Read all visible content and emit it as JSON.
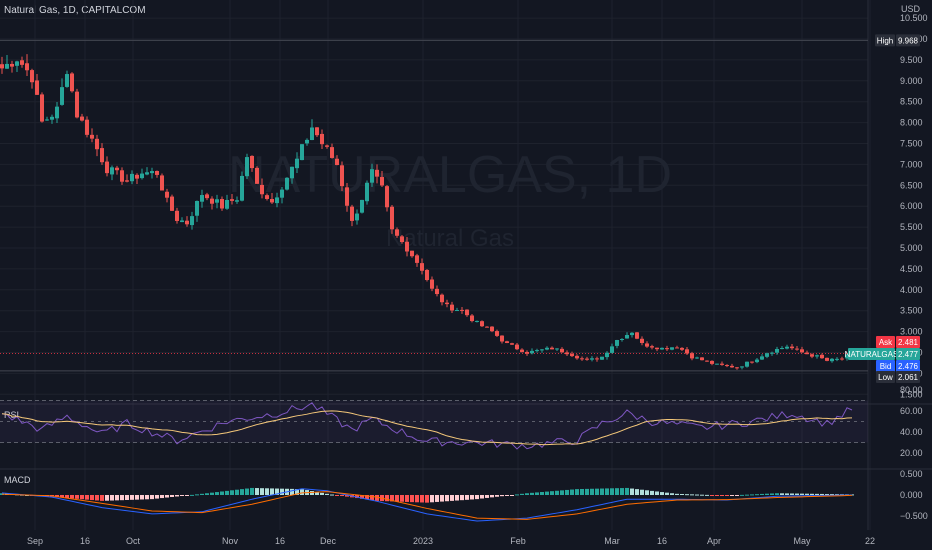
{
  "header": {
    "symbol_line": "Natural Gas, 1D, CAPITALCOM"
  },
  "watermark": {
    "main": "NATURALGAS, 1D",
    "sub": "Natural Gas"
  },
  "axis": {
    "unit": "USD",
    "price_ticks": [
      "1.500",
      "2.000",
      "2.500",
      "3.000",
      "3.500",
      "4.000",
      "4.500",
      "5.000",
      "5.500",
      "6.000",
      "6.500",
      "7.000",
      "7.500",
      "8.000",
      "8.500",
      "9.000",
      "9.500",
      "10.000",
      "10.500"
    ],
    "rsi_ticks": [
      "20.00",
      "40.00",
      "60.00",
      "80.00"
    ],
    "macd_ticks": [
      "−0.500",
      "0.000",
      "0.500"
    ],
    "time_labels": [
      "Sep",
      "16",
      "Oct",
      "Nov",
      "16",
      "Dec",
      "2023",
      "Feb",
      "Mar",
      "16",
      "Apr",
      "May",
      "22"
    ]
  },
  "markers": {
    "high": {
      "label": "High",
      "value": "9.968"
    },
    "ask": {
      "label": "Ask",
      "value": "2.481"
    },
    "symbol_tag": {
      "label": "NATURALGAS",
      "value": "2.477"
    },
    "bid": {
      "label": "Bid",
      "value": "2.476"
    },
    "low": {
      "label": "Low",
      "value": "2.061"
    }
  },
  "panels": {
    "rsi_label": "RSI",
    "macd_label": "MACD"
  },
  "colors": {
    "up": "#26a69a",
    "down": "#ef5350",
    "bg": "#131722",
    "grid": "#1e222d",
    "rsi_line": "#7e57c2",
    "rsi_ma": "#f5c87a",
    "macd_line": "#2962ff",
    "signal_line": "#ff6d00",
    "high_low_tag": "#2a2e39",
    "ask_tag": "#f23645",
    "bid_tag": "#2962ff",
    "sym_tag": "#26a69a"
  },
  "chart_data": {
    "type": "candlestick",
    "price_range": [
      1.5,
      10.5
    ],
    "anchors": {
      "close": [
        {
          "i": 0,
          "v": 9.3
        },
        {
          "i": 3,
          "v": 9.55
        },
        {
          "i": 6,
          "v": 9.1
        },
        {
          "i": 8,
          "v": 8.0
        },
        {
          "i": 11,
          "v": 8.3
        },
        {
          "i": 13,
          "v": 9.3
        },
        {
          "i": 15,
          "v": 8.2
        },
        {
          "i": 18,
          "v": 7.6
        },
        {
          "i": 21,
          "v": 6.9
        },
        {
          "i": 25,
          "v": 6.6
        },
        {
          "i": 28,
          "v": 6.8
        },
        {
          "i": 31,
          "v": 6.8
        },
        {
          "i": 33,
          "v": 6.1
        },
        {
          "i": 35,
          "v": 5.7
        },
        {
          "i": 37,
          "v": 5.6
        },
        {
          "i": 40,
          "v": 6.3
        },
        {
          "i": 44,
          "v": 6.0
        },
        {
          "i": 47,
          "v": 6.2
        },
        {
          "i": 49,
          "v": 7.2
        },
        {
          "i": 51,
          "v": 6.5
        },
        {
          "i": 54,
          "v": 6.1
        },
        {
          "i": 56,
          "v": 6.5
        },
        {
          "i": 59,
          "v": 7.1
        },
        {
          "i": 62,
          "v": 7.9
        },
        {
          "i": 64,
          "v": 7.5
        },
        {
          "i": 67,
          "v": 7.0
        },
        {
          "i": 70,
          "v": 5.6
        },
        {
          "i": 72,
          "v": 6.2
        },
        {
          "i": 74,
          "v": 6.8
        },
        {
          "i": 76,
          "v": 6.4
        },
        {
          "i": 78,
          "v": 5.4
        },
        {
          "i": 81,
          "v": 5.0
        },
        {
          "i": 84,
          "v": 4.5
        },
        {
          "i": 86,
          "v": 4.0
        },
        {
          "i": 89,
          "v": 3.6
        },
        {
          "i": 92,
          "v": 3.5
        },
        {
          "i": 95,
          "v": 3.2
        },
        {
          "i": 98,
          "v": 3.0
        },
        {
          "i": 101,
          "v": 2.7
        },
        {
          "i": 105,
          "v": 2.5
        },
        {
          "i": 110,
          "v": 2.6
        },
        {
          "i": 113,
          "v": 2.5
        },
        {
          "i": 117,
          "v": 2.3
        },
        {
          "i": 120,
          "v": 2.4
        },
        {
          "i": 123,
          "v": 2.8
        },
        {
          "i": 126,
          "v": 3.0
        },
        {
          "i": 128,
          "v": 2.7
        },
        {
          "i": 132,
          "v": 2.6
        },
        {
          "i": 135,
          "v": 2.65
        },
        {
          "i": 138,
          "v": 2.4
        },
        {
          "i": 143,
          "v": 2.2
        },
        {
          "i": 147,
          "v": 2.15
        },
        {
          "i": 150,
          "v": 2.3
        },
        {
          "i": 153,
          "v": 2.5
        },
        {
          "i": 157,
          "v": 2.65
        },
        {
          "i": 160,
          "v": 2.5
        },
        {
          "i": 163,
          "v": 2.4
        },
        {
          "i": 165,
          "v": 2.3
        },
        {
          "i": 168,
          "v": 2.35
        },
        {
          "i": 170,
          "v": 2.48
        }
      ],
      "rsi": [
        {
          "i": 0,
          "v": 58
        },
        {
          "i": 8,
          "v": 42
        },
        {
          "i": 13,
          "v": 55
        },
        {
          "i": 20,
          "v": 38
        },
        {
          "i": 25,
          "v": 48
        },
        {
          "i": 35,
          "v": 32
        },
        {
          "i": 45,
          "v": 50
        },
        {
          "i": 55,
          "v": 58
        },
        {
          "i": 62,
          "v": 66
        },
        {
          "i": 70,
          "v": 42
        },
        {
          "i": 74,
          "v": 52
        },
        {
          "i": 80,
          "v": 40
        },
        {
          "i": 85,
          "v": 31
        },
        {
          "i": 95,
          "v": 30
        },
        {
          "i": 105,
          "v": 27
        },
        {
          "i": 115,
          "v": 32
        },
        {
          "i": 120,
          "v": 48
        },
        {
          "i": 125,
          "v": 58
        },
        {
          "i": 130,
          "v": 50
        },
        {
          "i": 140,
          "v": 44
        },
        {
          "i": 150,
          "v": 50
        },
        {
          "i": 158,
          "v": 58
        },
        {
          "i": 165,
          "v": 48
        },
        {
          "i": 170,
          "v": 62
        }
      ],
      "macd": [
        {
          "i": 0,
          "v": 0.05
        },
        {
          "i": 10,
          "v": -0.05
        },
        {
          "i": 20,
          "v": -0.3
        },
        {
          "i": 30,
          "v": -0.45
        },
        {
          "i": 40,
          "v": -0.4
        },
        {
          "i": 50,
          "v": -0.1
        },
        {
          "i": 60,
          "v": 0.15
        },
        {
          "i": 65,
          "v": 0.1
        },
        {
          "i": 75,
          "v": -0.15
        },
        {
          "i": 85,
          "v": -0.45
        },
        {
          "i": 95,
          "v": -0.62
        },
        {
          "i": 105,
          "v": -0.55
        },
        {
          "i": 115,
          "v": -0.35
        },
        {
          "i": 125,
          "v": -0.1
        },
        {
          "i": 135,
          "v": -0.1
        },
        {
          "i": 145,
          "v": -0.12
        },
        {
          "i": 155,
          "v": -0.03
        },
        {
          "i": 170,
          "v": 0.0
        }
      ],
      "signal": [
        {
          "i": 0,
          "v": 0.02
        },
        {
          "i": 10,
          "v": -0.02
        },
        {
          "i": 20,
          "v": -0.2
        },
        {
          "i": 30,
          "v": -0.38
        },
        {
          "i": 40,
          "v": -0.42
        },
        {
          "i": 50,
          "v": -0.22
        },
        {
          "i": 60,
          "v": 0.05
        },
        {
          "i": 65,
          "v": 0.08
        },
        {
          "i": 75,
          "v": -0.05
        },
        {
          "i": 85,
          "v": -0.32
        },
        {
          "i": 95,
          "v": -0.55
        },
        {
          "i": 105,
          "v": -0.58
        },
        {
          "i": 115,
          "v": -0.45
        },
        {
          "i": 125,
          "v": -0.22
        },
        {
          "i": 135,
          "v": -0.12
        },
        {
          "i": 145,
          "v": -0.11
        },
        {
          "i": 155,
          "v": -0.06
        },
        {
          "i": 170,
          "v": -0.01
        }
      ]
    }
  }
}
